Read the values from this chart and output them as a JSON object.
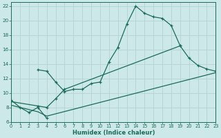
{
  "bg_color": "#cce8e8",
  "grid_color": "#b8d4d4",
  "line_color": "#1a6b58",
  "xlabel": "Humidex (Indice chaleur)",
  "xlim": [
    0,
    23
  ],
  "ylim": [
    6,
    22.5
  ],
  "yticks": [
    6,
    8,
    10,
    12,
    14,
    16,
    18,
    20,
    22
  ],
  "xticks": [
    0,
    1,
    2,
    3,
    4,
    5,
    6,
    7,
    8,
    9,
    10,
    11,
    12,
    13,
    14,
    15,
    16,
    17,
    18,
    19,
    20,
    21,
    22,
    23
  ],
  "curve1_x": [
    0,
    1,
    2,
    3,
    4
  ],
  "curve1_y": [
    9.0,
    8.0,
    7.3,
    8.0,
    6.5
  ],
  "curve2_x": [
    3,
    4,
    5,
    6,
    7,
    8,
    9,
    10,
    11,
    12,
    13,
    14,
    15,
    16,
    17,
    18,
    19
  ],
  "curve2_y": [
    13.2,
    13.0,
    11.5,
    10.2,
    10.5,
    10.5,
    11.3,
    11.5,
    14.3,
    16.3,
    19.5,
    22.0,
    21.0,
    20.5,
    20.3,
    19.3,
    16.5
  ],
  "curve3_x": [
    0,
    3,
    4,
    5,
    6,
    19,
    20,
    21,
    22,
    23
  ],
  "curve3_y": [
    8.8,
    8.2,
    8.0,
    9.2,
    10.5,
    16.5,
    14.8,
    13.8,
    13.3,
    13.0
  ],
  "curve4_x": [
    0,
    3,
    4,
    23
  ],
  "curve4_y": [
    8.3,
    7.4,
    6.8,
    12.8
  ],
  "marker_size": 3.5,
  "lw": 0.9
}
